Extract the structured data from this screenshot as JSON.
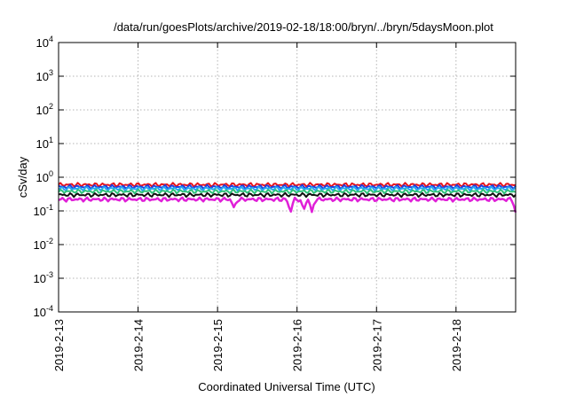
{
  "chart_data": {
    "type": "line",
    "title": "/data/run/goesPlots/archive/2019-02-18/18:00/bryn/../bryn/5daysMoon.plot",
    "xlabel": "Coordinated Universal Time (UTC)",
    "ylabel": "cSv/day",
    "yscale": "log",
    "ylim": [
      0.0001,
      10000
    ],
    "xlim": [
      "2019-02-13T00:00",
      "2019-02-18T18:00"
    ],
    "grid": true,
    "xticks": [
      {
        "value": "2019-02-13T00:00",
        "label": "2019-2-13"
      },
      {
        "value": "2019-02-14T00:00",
        "label": "2019-2-14"
      },
      {
        "value": "2019-02-15T00:00",
        "label": "2019-2-15"
      },
      {
        "value": "2019-02-16T00:00",
        "label": "2019-2-16"
      },
      {
        "value": "2019-02-17T00:00",
        "label": "2019-2-17"
      },
      {
        "value": "2019-02-18T00:00",
        "label": "2019-2-18"
      }
    ],
    "yticks": [
      {
        "value": 0.0001,
        "base": "10",
        "exp": "-4"
      },
      {
        "value": 0.001,
        "base": "10",
        "exp": "-3"
      },
      {
        "value": 0.01,
        "base": "10",
        "exp": "-2"
      },
      {
        "value": 0.1,
        "base": "10",
        "exp": "-1"
      },
      {
        "value": 1,
        "base": "10",
        "exp": "0"
      },
      {
        "value": 10,
        "base": "10",
        "exp": "1"
      },
      {
        "value": 100,
        "base": "10",
        "exp": "2"
      },
      {
        "value": 1000,
        "base": "10",
        "exp": "3"
      },
      {
        "value": 10000,
        "base": "10",
        "exp": "4"
      }
    ],
    "series": [
      {
        "color": "#e8141c",
        "base": 0.6,
        "dips": []
      },
      {
        "color": "#1f3fe0",
        "base": 0.52,
        "dips": []
      },
      {
        "color": "#22a8f0",
        "base": 0.46,
        "dips": []
      },
      {
        "color": "#2ec27a",
        "base": 0.38,
        "dips": []
      },
      {
        "color": "#111111",
        "base": 0.3,
        "dips": []
      },
      {
        "color": "#e020d8",
        "base": 0.22,
        "dips": [
          {
            "x": "2019-02-15T05:00",
            "y": 0.12
          },
          {
            "x": "2019-02-15T22:00",
            "y": 0.08
          },
          {
            "x": "2019-02-16T02:00",
            "y": 0.1
          },
          {
            "x": "2019-02-16T04:30",
            "y": 0.09
          },
          {
            "x": "2019-02-18T18:00",
            "y": 0.09
          }
        ]
      }
    ]
  }
}
